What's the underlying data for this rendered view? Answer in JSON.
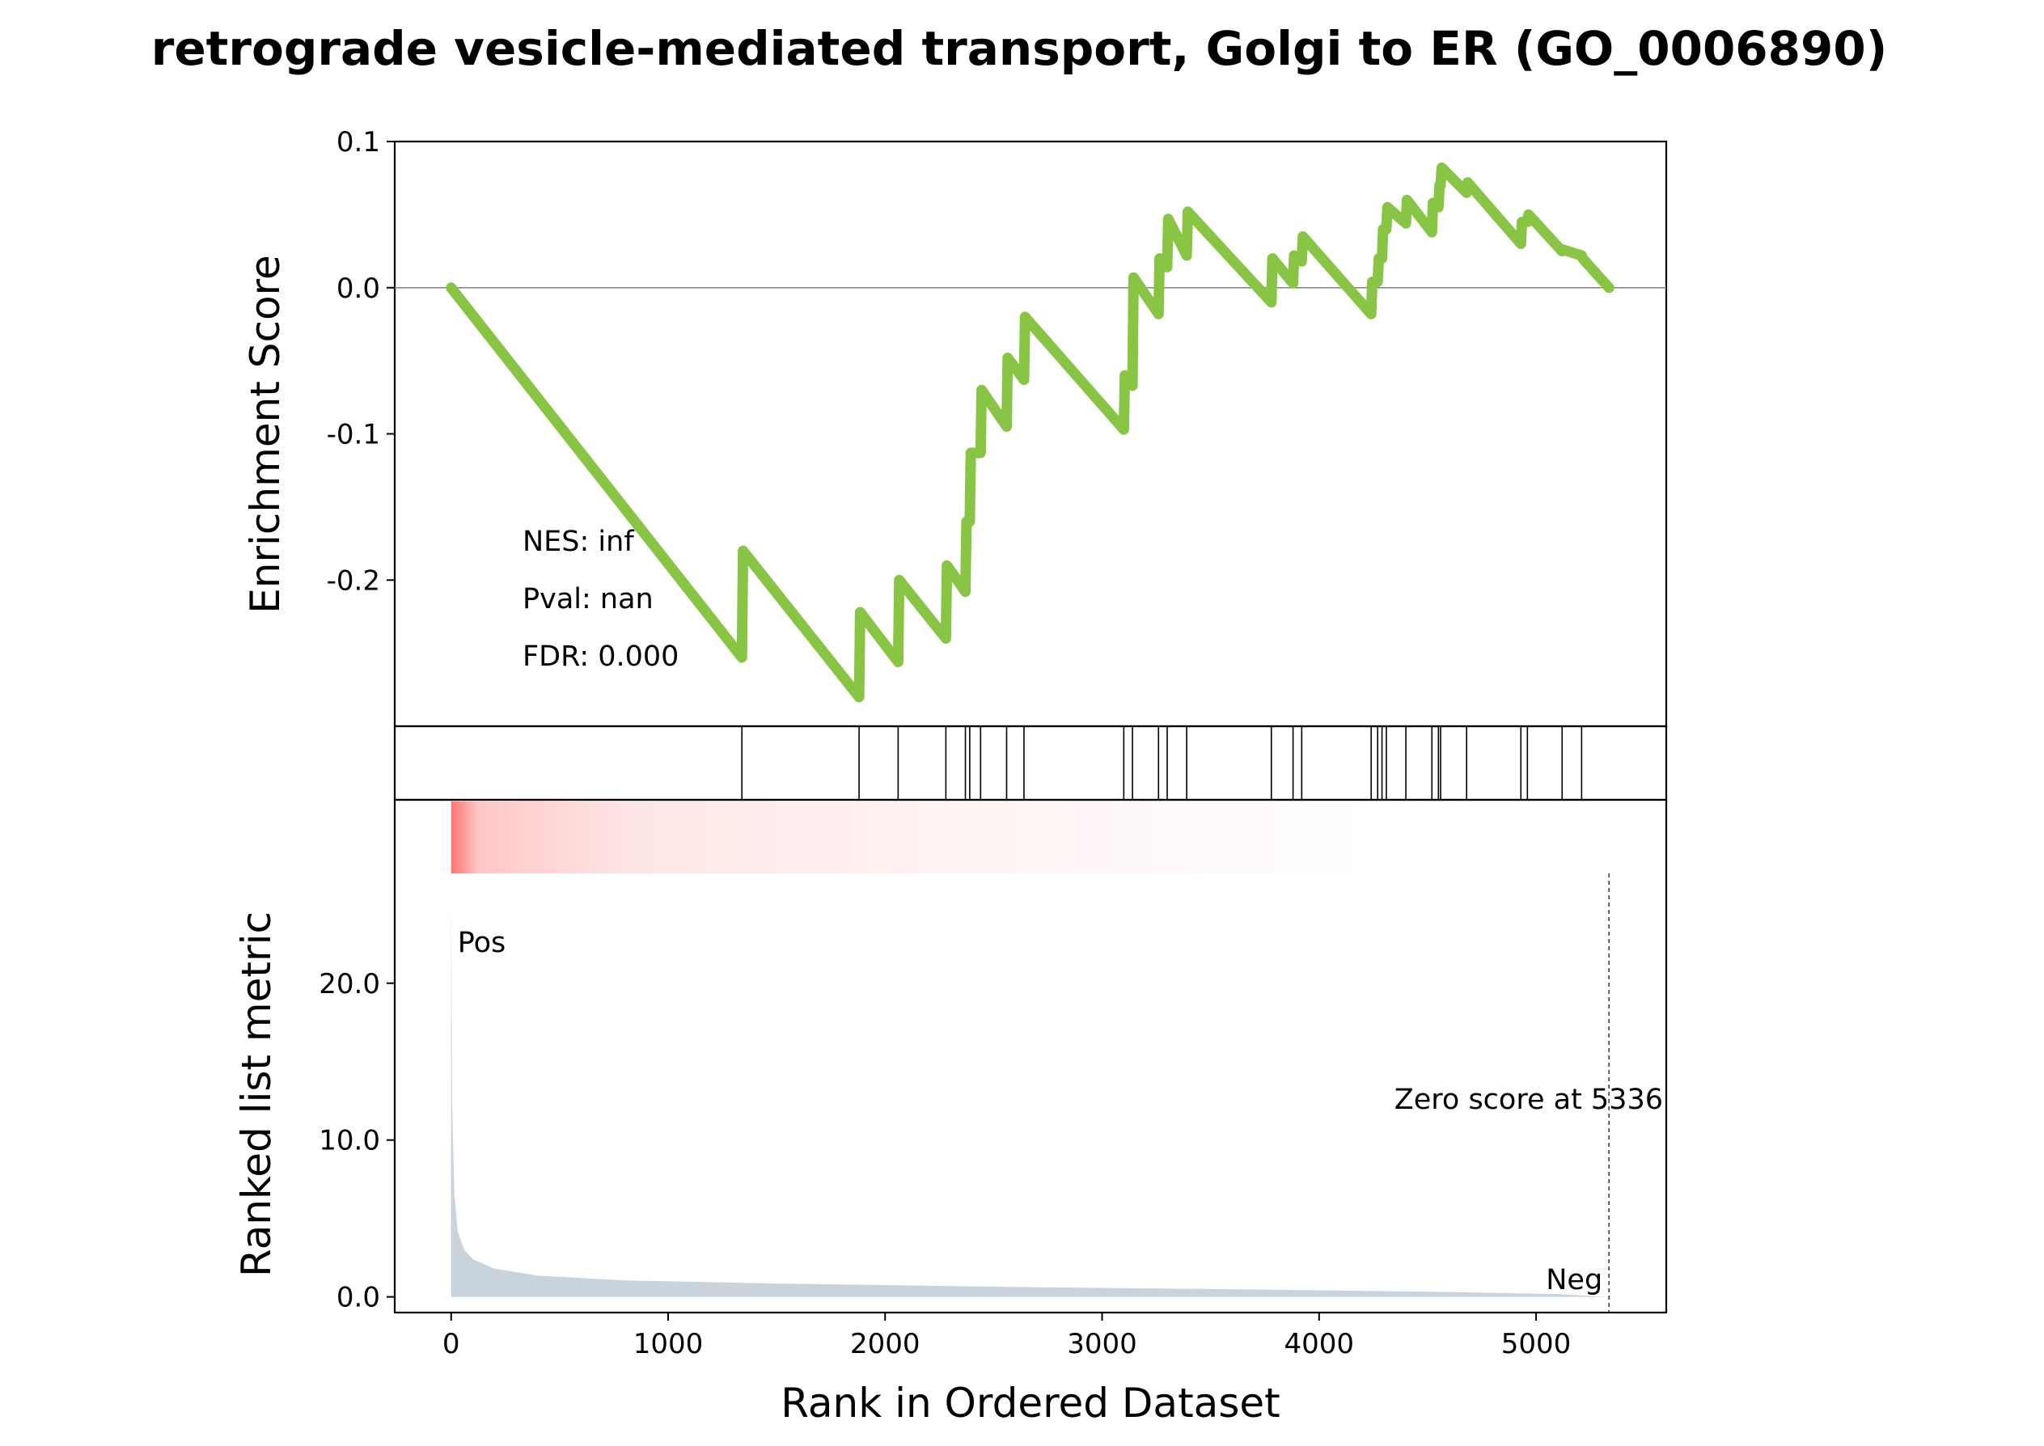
{
  "chart_data": {
    "type": "line",
    "title": "retrograde vesicle-mediated transport, Golgi to ER (GO_0006890)",
    "es_panel": {
      "ylabel": "Enrichment Score",
      "ylim": [
        -0.3,
        0.1
      ],
      "yticks": [
        0.1,
        0.0,
        -0.1,
        -0.2
      ],
      "ytick_labels": [
        "0.1",
        "0.0",
        "-0.1",
        "-0.2"
      ],
      "line_color": "#88c544",
      "stats": {
        "nes": "NES: inf",
        "pval": "Pval: nan",
        "fdr": "FDR: 0.000"
      },
      "curve": [
        [
          0,
          0.0
        ],
        [
          1340,
          -0.253
        ],
        [
          1345,
          -0.18
        ],
        [
          1880,
          -0.28
        ],
        [
          1885,
          -0.222
        ],
        [
          2060,
          -0.256
        ],
        [
          2065,
          -0.2
        ],
        [
          2280,
          -0.24
        ],
        [
          2285,
          -0.19
        ],
        [
          2370,
          -0.208
        ],
        [
          2375,
          -0.16
        ],
        [
          2390,
          -0.16
        ],
        [
          2395,
          -0.113
        ],
        [
          2440,
          -0.113
        ],
        [
          2445,
          -0.07
        ],
        [
          2560,
          -0.095
        ],
        [
          2565,
          -0.048
        ],
        [
          2640,
          -0.063
        ],
        [
          2645,
          -0.02
        ],
        [
          3100,
          -0.097
        ],
        [
          3105,
          -0.06
        ],
        [
          3140,
          -0.067
        ],
        [
          3145,
          0.007
        ],
        [
          3260,
          -0.018
        ],
        [
          3265,
          0.02
        ],
        [
          3300,
          0.014
        ],
        [
          3305,
          0.047
        ],
        [
          3390,
          0.022
        ],
        [
          3395,
          0.052
        ],
        [
          3780,
          -0.01
        ],
        [
          3785,
          0.02
        ],
        [
          3880,
          0.003
        ],
        [
          3885,
          0.022
        ],
        [
          3920,
          0.018
        ],
        [
          3925,
          0.035
        ],
        [
          4240,
          -0.018
        ],
        [
          4245,
          0.004
        ],
        [
          4270,
          0.004
        ],
        [
          4275,
          0.02
        ],
        [
          4290,
          0.02
        ],
        [
          4295,
          0.04
        ],
        [
          4310,
          0.04
        ],
        [
          4315,
          0.055
        ],
        [
          4400,
          0.044
        ],
        [
          4405,
          0.06
        ],
        [
          4520,
          0.038
        ],
        [
          4525,
          0.058
        ],
        [
          4550,
          0.055
        ],
        [
          4555,
          0.07
        ],
        [
          4560,
          0.07
        ],
        [
          4565,
          0.082
        ],
        [
          4680,
          0.065
        ],
        [
          4685,
          0.072
        ],
        [
          4930,
          0.03
        ],
        [
          4935,
          0.045
        ],
        [
          4960,
          0.045
        ],
        [
          4965,
          0.05
        ],
        [
          5120,
          0.025
        ],
        [
          5125,
          0.026
        ],
        [
          5210,
          0.022
        ],
        [
          5215,
          0.02
        ],
        [
          5336,
          0.0
        ]
      ]
    },
    "hits": [
      1340,
      1880,
      2060,
      2280,
      2370,
      2390,
      2440,
      2560,
      2640,
      3100,
      3140,
      3260,
      3300,
      3390,
      3780,
      3880,
      3920,
      4240,
      4270,
      4290,
      4310,
      4400,
      4520,
      4550,
      4560,
      4680,
      4930,
      4960,
      5120,
      5210
    ],
    "metric_panel": {
      "ylabel": "Ranked list metric",
      "ylim": [
        -1,
        27
      ],
      "yticks": [
        0,
        10,
        20
      ],
      "ytick_labels": [
        "0.0",
        "10.0",
        "20.0"
      ],
      "fill_color": "#c8d3db",
      "pos_label": "Pos",
      "neg_label": "Neg",
      "pos_color": "#ff0000",
      "neg_color": "#0000ff",
      "zero_score_label": "Zero score at 5336",
      "zero_score_rank": 5336,
      "heat_color": "#ff0000",
      "curve": [
        [
          0,
          25.5
        ],
        [
          5,
          12.0
        ],
        [
          15,
          6.5
        ],
        [
          30,
          4.2
        ],
        [
          60,
          3.0
        ],
        [
          100,
          2.4
        ],
        [
          200,
          1.8
        ],
        [
          400,
          1.35
        ],
        [
          800,
          1.05
        ],
        [
          1500,
          0.85
        ],
        [
          2500,
          0.65
        ],
        [
          3500,
          0.5
        ],
        [
          4500,
          0.33
        ],
        [
          5100,
          0.18
        ],
        [
          5336,
          0.0
        ]
      ]
    },
    "xlabel": "Rank in Ordered Dataset",
    "xlim": [
      -260,
      5600
    ],
    "xticks": [
      0,
      1000,
      2000,
      3000,
      4000,
      5000
    ],
    "xtick_labels": [
      "0",
      "1000",
      "2000",
      "3000",
      "4000",
      "5000"
    ]
  }
}
